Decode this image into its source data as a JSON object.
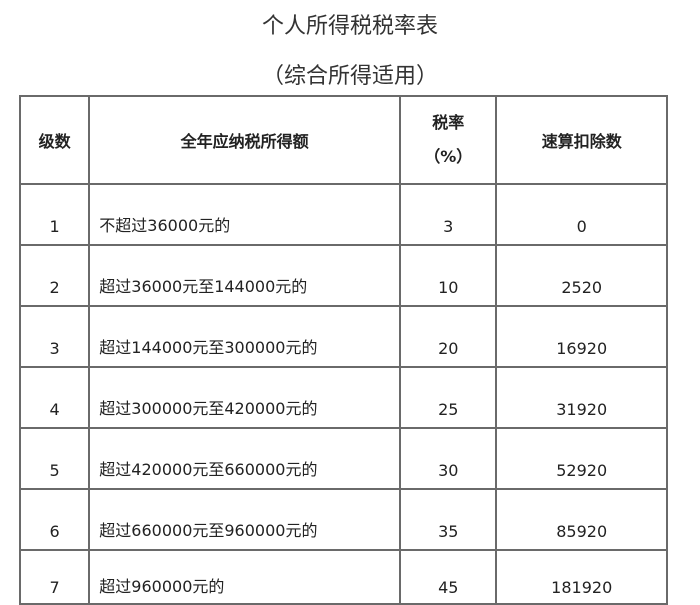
{
  "title": "个人所得税税率表",
  "subtitle": "（综合所得适用）",
  "headers": {
    "level": "级数",
    "income": "全年应纳税所得额",
    "rate_line1": "税率",
    "rate_line2": "（%）",
    "deduction": "速算扣除数"
  },
  "rows": [
    {
      "level": "1",
      "range": "不超过36000元的",
      "rate": "3",
      "deduction": "0"
    },
    {
      "level": "2",
      "range": "超过36000元至144000元的",
      "rate": "10",
      "deduction": "2520"
    },
    {
      "level": "3",
      "range": "超过144000元至300000元的",
      "rate": "20",
      "deduction": "16920"
    },
    {
      "level": "4",
      "range": "超过300000元至420000元的",
      "rate": "25",
      "deduction": "31920"
    },
    {
      "level": "5",
      "range": "超过420000元至660000元的",
      "rate": "30",
      "deduction": "52920"
    },
    {
      "level": "6",
      "range": "超过660000元至960000元的",
      "rate": "35",
      "deduction": "85920"
    },
    {
      "level": "7",
      "range": "超过960000元的",
      "rate": "45",
      "deduction": "181920"
    }
  ]
}
